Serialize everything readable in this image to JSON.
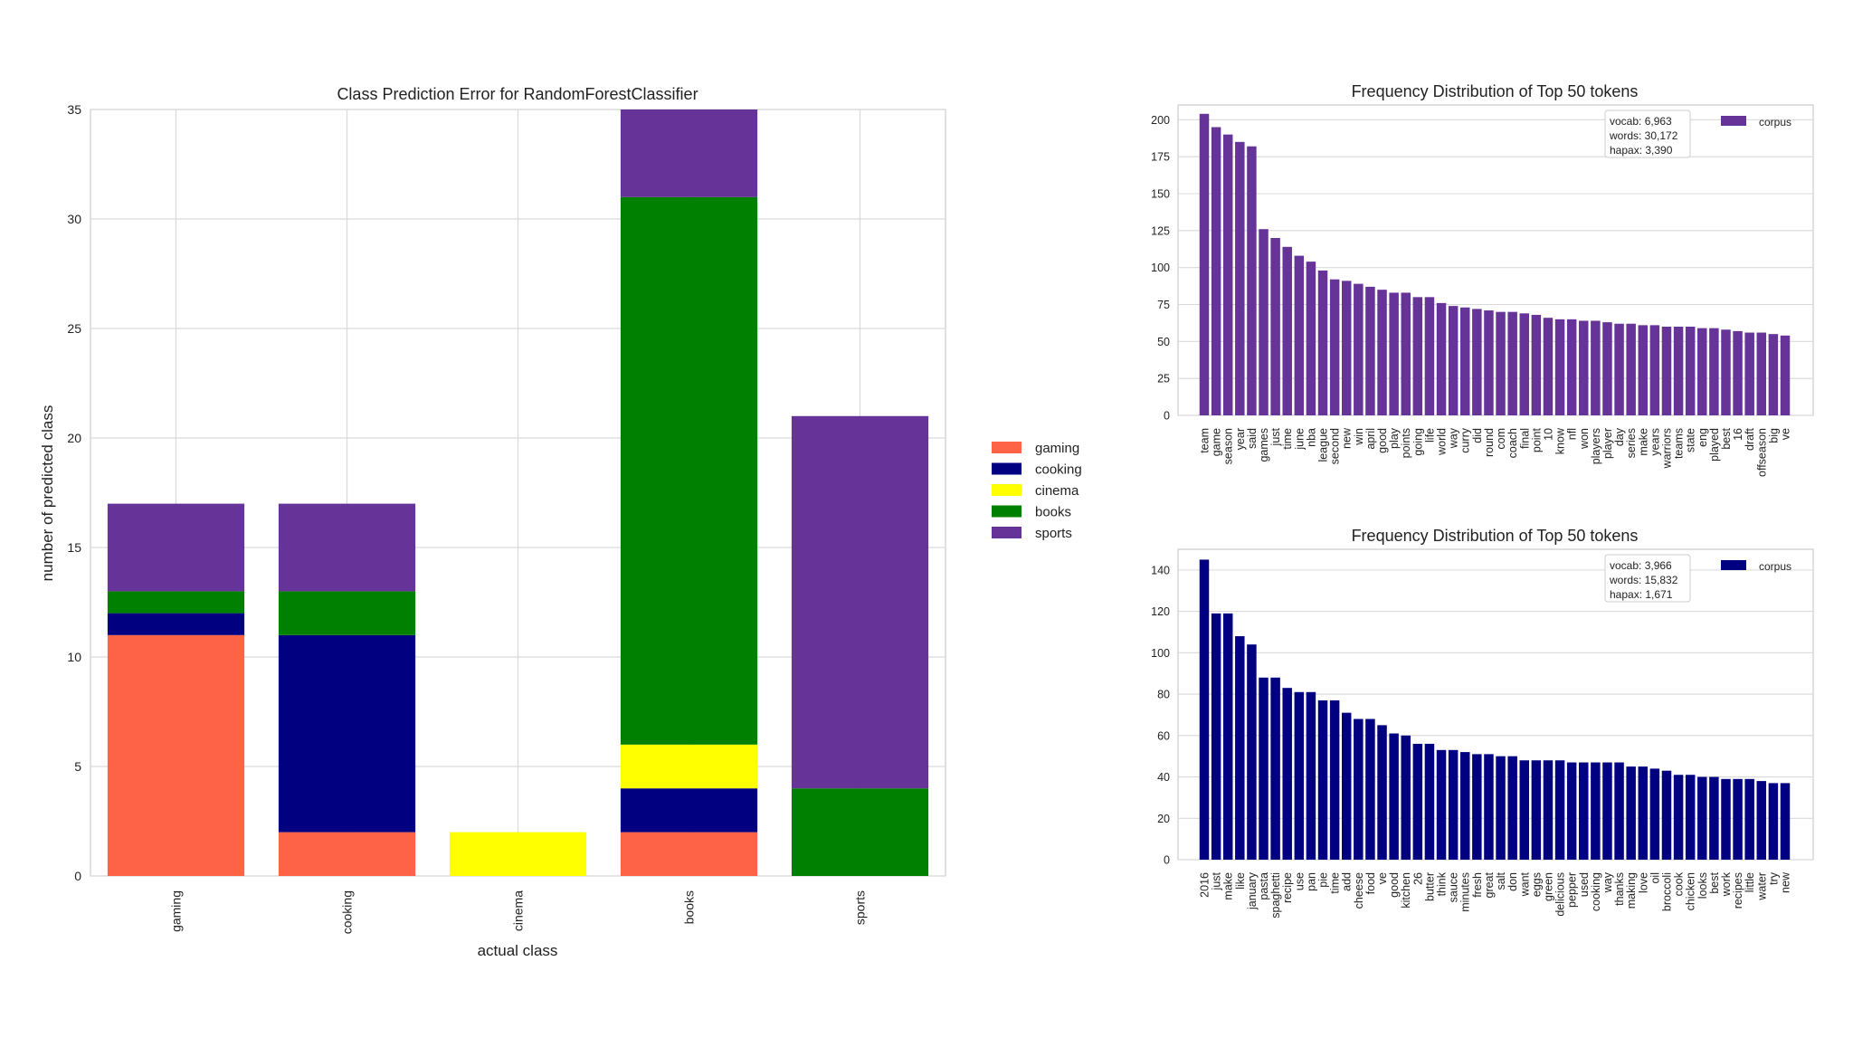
{
  "chart_data": [
    {
      "id": "class-prediction-error",
      "type": "bar",
      "stacked": true,
      "title": "Class Prediction Error for RandomForestClassifier",
      "xlabel": "actual class",
      "ylabel": "number of predicted class",
      "ylim": [
        0,
        35
      ],
      "yticks": [
        0,
        5,
        10,
        15,
        20,
        25,
        30,
        35
      ],
      "categories": [
        "gaming",
        "cooking",
        "cinema",
        "books",
        "sports"
      ],
      "series": [
        {
          "name": "gaming",
          "color": "#ff6347",
          "values": [
            11,
            2,
            0,
            2,
            0
          ]
        },
        {
          "name": "cooking",
          "color": "#000080",
          "values": [
            1,
            9,
            0,
            2,
            0
          ]
        },
        {
          "name": "cinema",
          "color": "#ffff00",
          "values": [
            0,
            0,
            2,
            2,
            0
          ]
        },
        {
          "name": "books",
          "color": "#008000",
          "values": [
            1,
            2,
            0,
            25,
            4
          ]
        },
        {
          "name": "sports",
          "color": "#663399",
          "values": [
            4,
            4,
            0,
            4,
            17
          ]
        }
      ],
      "legend_position": "right"
    },
    {
      "id": "freq-dist-sports",
      "type": "bar",
      "title": "Frequency Distribution of Top 50 tokens",
      "legend": "corpus",
      "color": "#663399",
      "ylim": [
        0,
        210
      ],
      "yticks": [
        0,
        25,
        50,
        75,
        100,
        125,
        150,
        175,
        200
      ],
      "stats": {
        "vocab": "vocab: 6,963",
        "words": "words: 30,172",
        "hapax": "hapax: 3,390"
      },
      "categories": [
        "team",
        "game",
        "season",
        "year",
        "said",
        "games",
        "just",
        "time",
        "june",
        "nba",
        "league",
        "second",
        "new",
        "win",
        "april",
        "good",
        "play",
        "points",
        "going",
        "life",
        "world",
        "way",
        "curry",
        "did",
        "round",
        "com",
        "coach",
        "final",
        "point",
        "10",
        "know",
        "nfl",
        "won",
        "players",
        "player",
        "day",
        "series",
        "make",
        "years",
        "warriors",
        "teams",
        "state",
        "eng",
        "played",
        "best",
        "16",
        "draft",
        "offseason",
        "big",
        "ve"
      ],
      "values": [
        204,
        195,
        190,
        185,
        182,
        126,
        120,
        114,
        108,
        104,
        98,
        92,
        91,
        89,
        87,
        85,
        83,
        83,
        80,
        80,
        76,
        74,
        73,
        72,
        71,
        70,
        70,
        69,
        68,
        66,
        65,
        65,
        64,
        64,
        63,
        62,
        62,
        61,
        61,
        60,
        60,
        60,
        59,
        59,
        58,
        57,
        56,
        56,
        55,
        54
      ]
    },
    {
      "id": "freq-dist-cooking",
      "type": "bar",
      "title": "Frequency Distribution of Top 50 tokens",
      "legend": "corpus",
      "color": "#000080",
      "ylim": [
        0,
        150
      ],
      "yticks": [
        0,
        20,
        40,
        60,
        80,
        100,
        120,
        140
      ],
      "stats": {
        "vocab": "vocab: 3,966",
        "words": "words: 15,832",
        "hapax": "hapax: 1,671"
      },
      "categories": [
        "2016",
        "just",
        "make",
        "like",
        "january",
        "pasta",
        "spaghetti",
        "recipe",
        "use",
        "pan",
        "pie",
        "time",
        "add",
        "cheese",
        "food",
        "ve",
        "good",
        "kitchen",
        "26",
        "butter",
        "think",
        "sauce",
        "minutes",
        "fresh",
        "great",
        "salt",
        "don",
        "want",
        "eggs",
        "green",
        "delicious",
        "pepper",
        "used",
        "cooking",
        "way",
        "thanks",
        "making",
        "love",
        "oil",
        "broccoli",
        "cook",
        "chicken",
        "looks",
        "best",
        "work",
        "recipes",
        "little",
        "water",
        "try",
        "new"
      ],
      "values": [
        145,
        119,
        119,
        108,
        104,
        88,
        88,
        83,
        81,
        81,
        77,
        77,
        71,
        68,
        68,
        65,
        61,
        60,
        56,
        56,
        53,
        53,
        52,
        51,
        51,
        50,
        50,
        48,
        48,
        48,
        48,
        47,
        47,
        47,
        47,
        47,
        45,
        45,
        44,
        43,
        41,
        41,
        40,
        40,
        39,
        39,
        39,
        38,
        37,
        37
      ]
    }
  ]
}
